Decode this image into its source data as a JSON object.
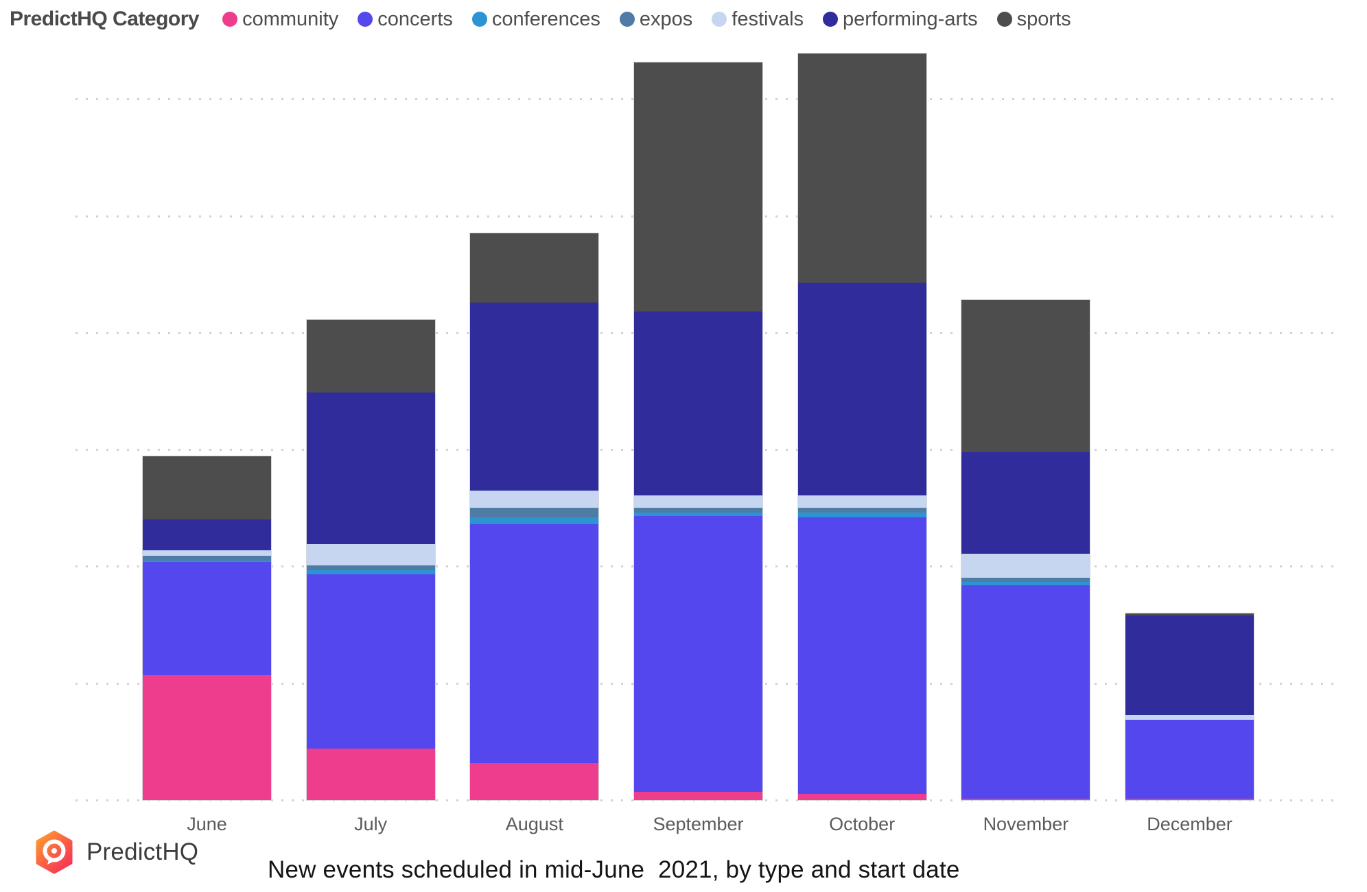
{
  "legend": {
    "title": "PredictHQ Category",
    "items": [
      {
        "label": "community",
        "color": "#EE3D8D"
      },
      {
        "label": "concerts",
        "color": "#5447EE"
      },
      {
        "label": "conferences",
        "color": "#2D93D3"
      },
      {
        "label": "expos",
        "color": "#4E7CA4"
      },
      {
        "label": "festivals",
        "color": "#C6D6F0"
      },
      {
        "label": "performing-arts",
        "color": "#302C9C"
      },
      {
        "label": "sports",
        "color": "#4D4D4D"
      }
    ]
  },
  "chart_data": {
    "type": "bar",
    "stacked": true,
    "title": "New events scheduled in mid-June  2021, by type and start date",
    "categories": [
      "June",
      "July",
      "August",
      "September",
      "October",
      "November",
      "December"
    ],
    "series": [
      {
        "name": "community",
        "color": "#EE3D8D",
        "values": [
          107,
          44,
          32,
          7,
          5,
          1,
          1
        ]
      },
      {
        "name": "concerts",
        "color": "#5447EE",
        "values": [
          97,
          149,
          204,
          236,
          237,
          183,
          68
        ]
      },
      {
        "name": "conferences",
        "color": "#2D93D3",
        "values": [
          1,
          4,
          6,
          3,
          4,
          3,
          0
        ]
      },
      {
        "name": "expos",
        "color": "#4E7CA4",
        "values": [
          4,
          4,
          8,
          4,
          4,
          3,
          0
        ]
      },
      {
        "name": "festivals",
        "color": "#C6D6F0",
        "values": [
          5,
          18,
          15,
          11,
          11,
          21,
          4
        ]
      },
      {
        "name": "performing-arts",
        "color": "#302C9C",
        "values": [
          26,
          130,
          161,
          157,
          182,
          87,
          85
        ]
      },
      {
        "name": "sports",
        "color": "#4D4D4D",
        "values": [
          54,
          62,
          59,
          213,
          196,
          130,
          2
        ]
      }
    ],
    "totals": [
      294,
      411,
      485,
      631,
      639,
      428,
      160
    ],
    "xlabel": "",
    "ylabel": "",
    "y_axis": {
      "tick_labels_visible": false,
      "gridline_count": 7,
      "units_per_gridline_interval": 100,
      "ylim": [
        0,
        660
      ],
      "note": "No numeric y-axis labels are shown in the chart; values are relative units estimated from the dotted gridline spacing (1 interval = 100 units)."
    },
    "grid": "dotted horizontal",
    "legend_position": "top"
  },
  "footer": {
    "brand": "PredictHQ",
    "logo": "predicthq-hexagon-pin-icon",
    "logo_gradient": [
      "#FFA12E",
      "#F5315B"
    ]
  }
}
